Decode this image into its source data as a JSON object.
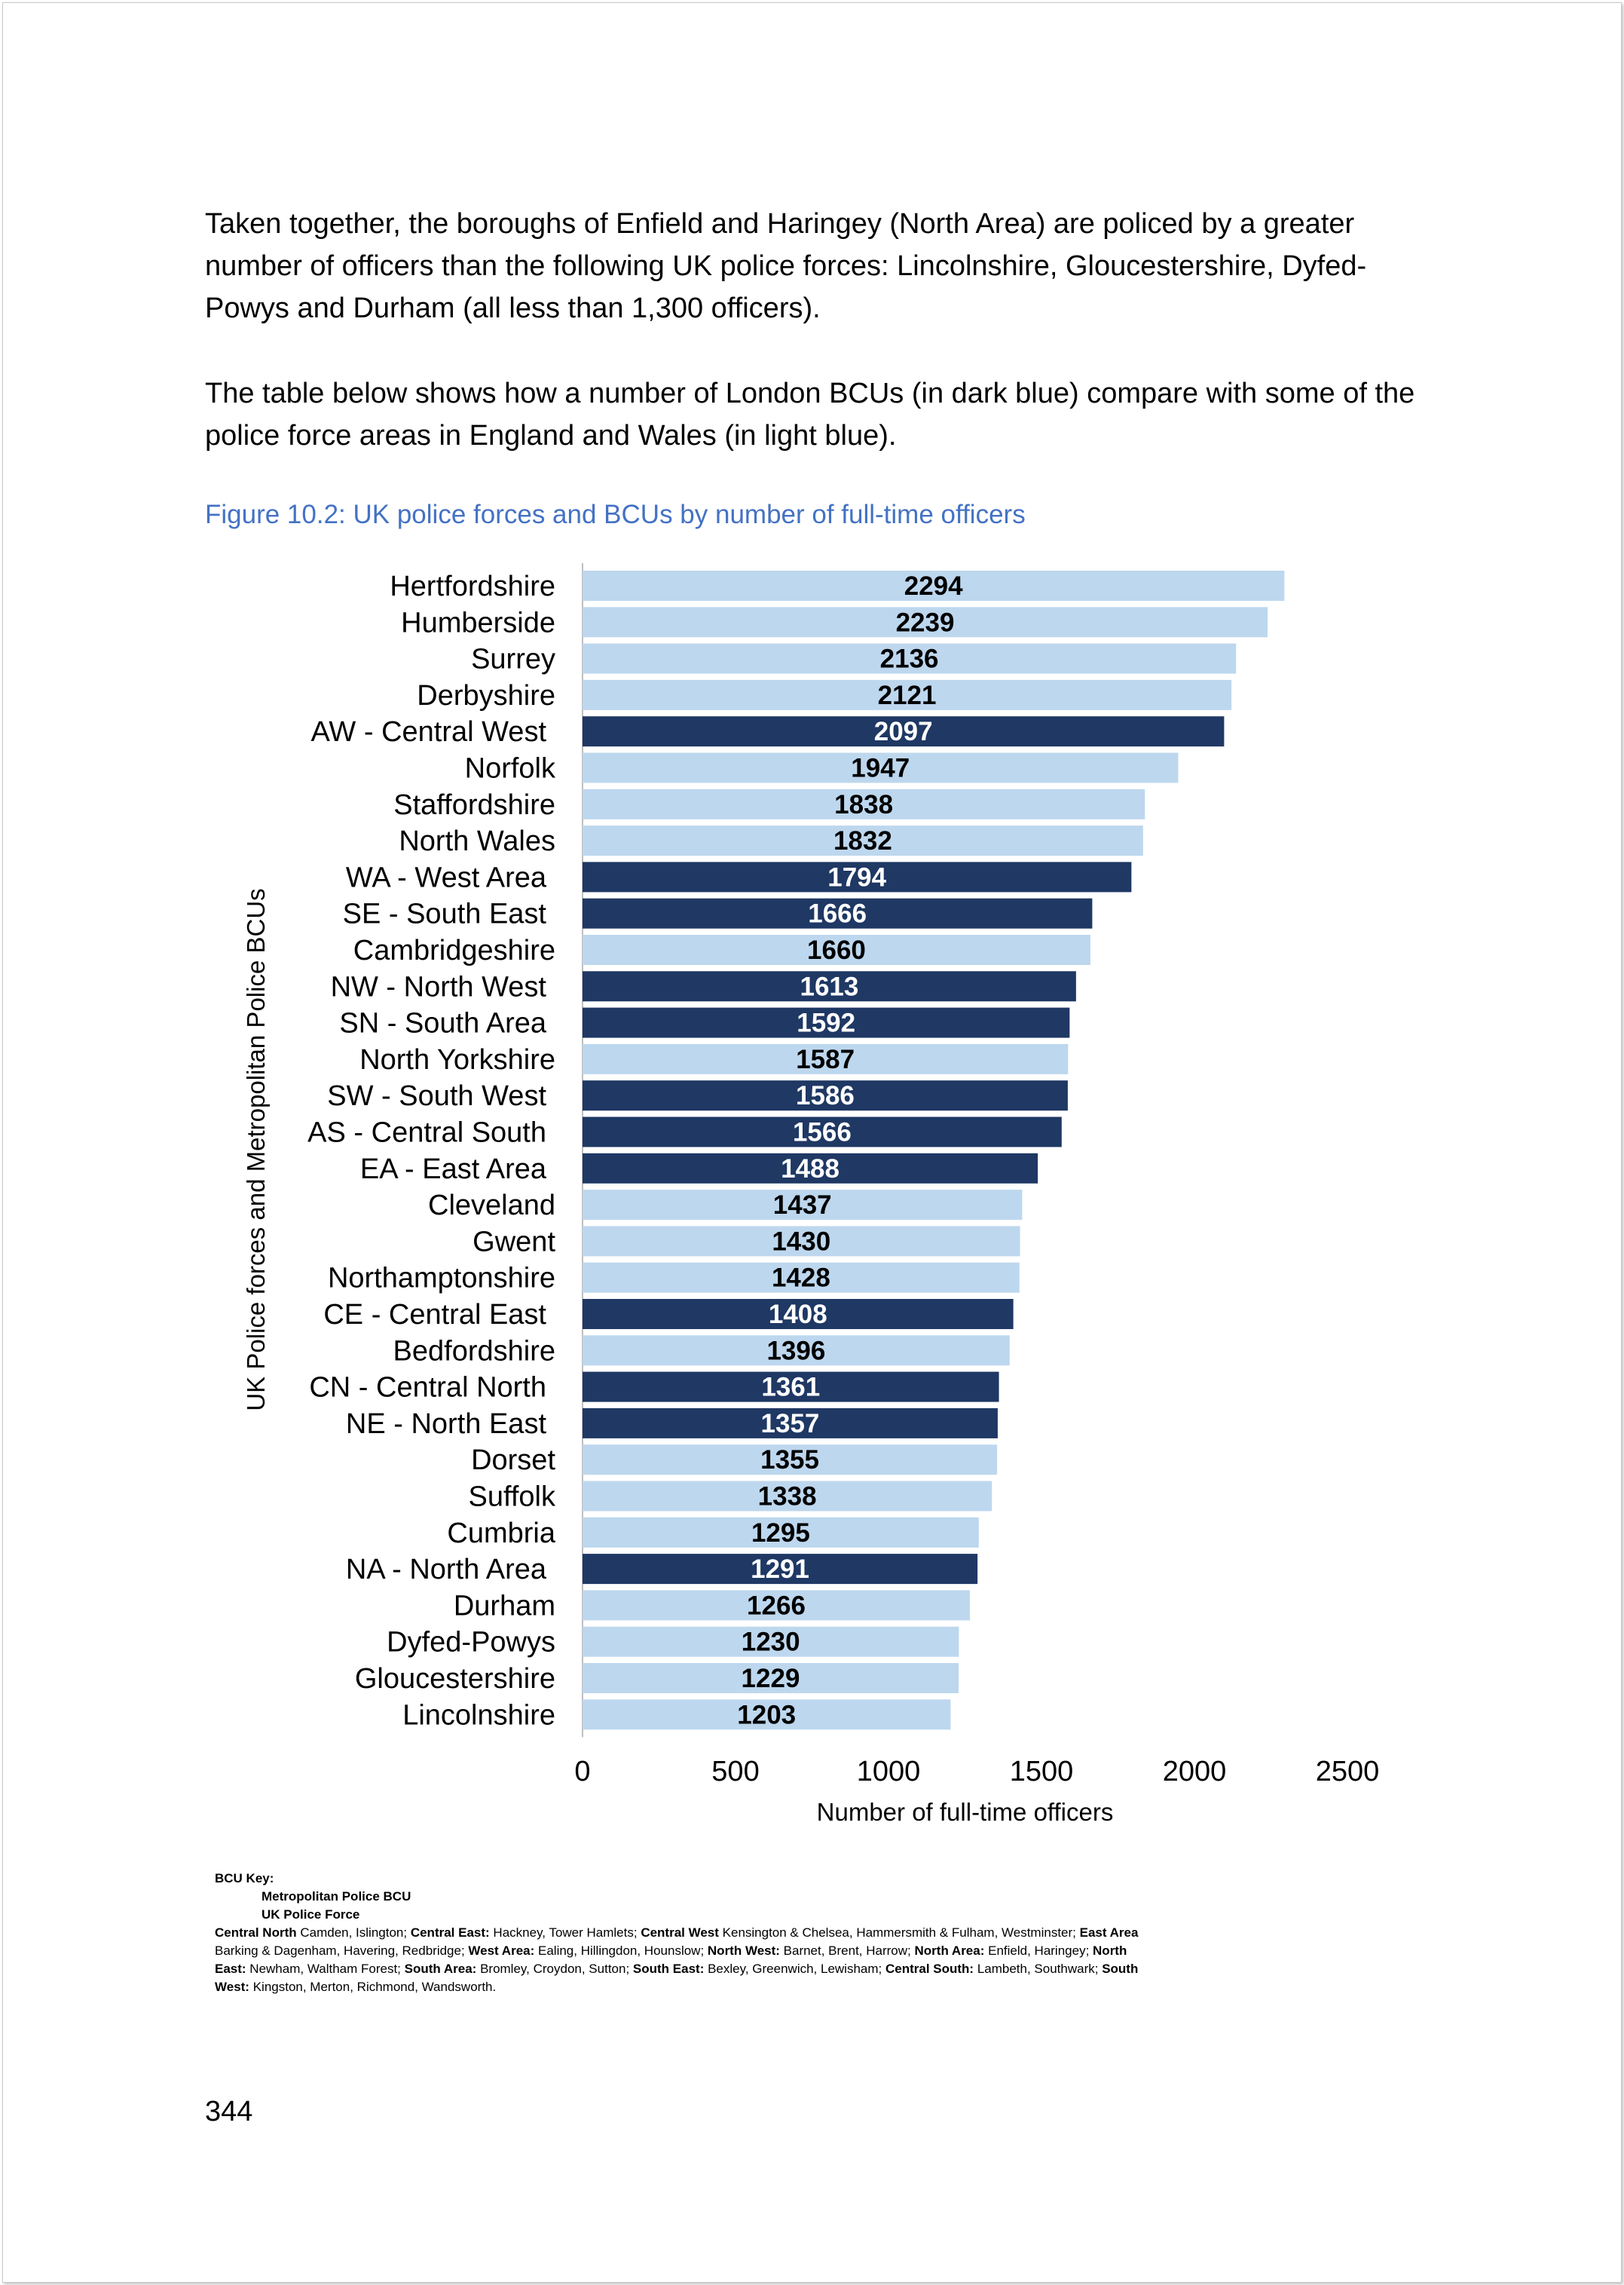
{
  "intro": {
    "paragraph1": "Taken together, the boroughs of Enfield and Haringey (North Area) are policed by a greater number of officers than the following UK police forces: Lincolnshire, Gloucestershire, Dyfed-Powys and Durham (all less than 1,300 officers).",
    "paragraph2": "The table below shows how a number of London BCUs (in dark blue) compare with some of the police force areas in England and Wales (in light blue)."
  },
  "figure_caption": "Figure 10.2: UK police forces and BCUs by number of full-time officers",
  "chart_data": {
    "type": "bar",
    "orientation": "horizontal",
    "title": "",
    "xlabel": "Number of full-time officers",
    "ylabel": "UK Police forces and Metropolitan Police BCUs",
    "xlim": [
      0,
      2500
    ],
    "xticks": [
      0,
      500,
      1000,
      1500,
      2000,
      2500
    ],
    "colors": {
      "Metropolitan Police BCU": "#1f3864",
      "UK Police Force": "#bdd7ee"
    },
    "bars": [
      {
        "label": "Hertfordshire",
        "value": 2294,
        "group": "UK Police Force"
      },
      {
        "label": "Humberside",
        "value": 2239,
        "group": "UK Police Force"
      },
      {
        "label": "Surrey",
        "value": 2136,
        "group": "UK Police Force"
      },
      {
        "label": "Derbyshire",
        "value": 2121,
        "group": "UK Police Force"
      },
      {
        "label": "AW - Central West",
        "value": 2097,
        "group": "Metropolitan Police BCU"
      },
      {
        "label": "Norfolk",
        "value": 1947,
        "group": "UK Police Force"
      },
      {
        "label": "Staffordshire",
        "value": 1838,
        "group": "UK Police Force"
      },
      {
        "label": "North Wales",
        "value": 1832,
        "group": "UK Police Force"
      },
      {
        "label": "WA - West Area",
        "value": 1794,
        "group": "Metropolitan Police BCU"
      },
      {
        "label": "SE - South East",
        "value": 1666,
        "group": "Metropolitan Police BCU"
      },
      {
        "label": "Cambridgeshire",
        "value": 1660,
        "group": "UK Police Force"
      },
      {
        "label": "NW - North West",
        "value": 1613,
        "group": "Metropolitan Police BCU"
      },
      {
        "label": "SN - South Area",
        "value": 1592,
        "group": "Metropolitan Police BCU"
      },
      {
        "label": "North Yorkshire",
        "value": 1587,
        "group": "UK Police Force"
      },
      {
        "label": "SW - South West",
        "value": 1586,
        "group": "Metropolitan Police BCU"
      },
      {
        "label": "AS - Central South",
        "value": 1566,
        "group": "Metropolitan Police BCU"
      },
      {
        "label": "EA - East Area",
        "value": 1488,
        "group": "Metropolitan Police BCU"
      },
      {
        "label": "Cleveland",
        "value": 1437,
        "group": "UK Police Force"
      },
      {
        "label": "Gwent",
        "value": 1430,
        "group": "UK Police Force"
      },
      {
        "label": "Northamptonshire",
        "value": 1428,
        "group": "UK Police Force"
      },
      {
        "label": "CE - Central East",
        "value": 1408,
        "group": "Metropolitan Police BCU"
      },
      {
        "label": "Bedfordshire",
        "value": 1396,
        "group": "UK Police Force"
      },
      {
        "label": "CN - Central North",
        "value": 1361,
        "group": "Metropolitan Police BCU"
      },
      {
        "label": "NE - North East",
        "value": 1357,
        "group": "Metropolitan Police BCU"
      },
      {
        "label": "Dorset",
        "value": 1355,
        "group": "UK Police Force"
      },
      {
        "label": "Suffolk",
        "value": 1338,
        "group": "UK Police Force"
      },
      {
        "label": "Cumbria",
        "value": 1295,
        "group": "UK Police Force"
      },
      {
        "label": "NA - North Area",
        "value": 1291,
        "group": "Metropolitan Police BCU"
      },
      {
        "label": "Durham",
        "value": 1266,
        "group": "UK Police Force"
      },
      {
        "label": "Dyfed-Powys",
        "value": 1230,
        "group": "UK Police Force"
      },
      {
        "label": "Gloucestershire",
        "value": 1229,
        "group": "UK Police Force"
      },
      {
        "label": "Lincolnshire",
        "value": 1203,
        "group": "UK Police Force"
      }
    ]
  },
  "key": {
    "heading": "BCU Key:",
    "legend_bcu": "Metropolitan Police BCU",
    "legend_force": "UK Police Force",
    "entries": [
      {
        "area": "Central North",
        "boroughs": "Camden, Islington;"
      },
      {
        "area": "Central East:",
        "boroughs": "Hackney, Tower Hamlets;"
      },
      {
        "area": "Central West",
        "boroughs": "Kensington & Chelsea, Hammersmith & Fulham, Westminster;"
      },
      {
        "area": "East Area",
        "boroughs": "Barking & Dagenham, Havering, Redbridge;"
      },
      {
        "area": "West Area:",
        "boroughs": "Ealing, Hillingdon, Hounslow;"
      },
      {
        "area": "North West:",
        "boroughs": "Barnet, Brent, Harrow;"
      },
      {
        "area": "North Area:",
        "boroughs": "Enfield, Haringey;"
      },
      {
        "area": "North East:",
        "boroughs": "Newham, Waltham Forest;"
      },
      {
        "area": "South Area:",
        "boroughs": "Bromley, Croydon, Sutton;"
      },
      {
        "area": "South East:",
        "boroughs": "Bexley, Greenwich, Lewisham;"
      },
      {
        "area": "Central South:",
        "boroughs": "Lambeth, Southwark;"
      },
      {
        "area": "South West:",
        "boroughs": "Kingston, Merton, Richmond, Wandsworth."
      }
    ]
  },
  "page_number": "344"
}
